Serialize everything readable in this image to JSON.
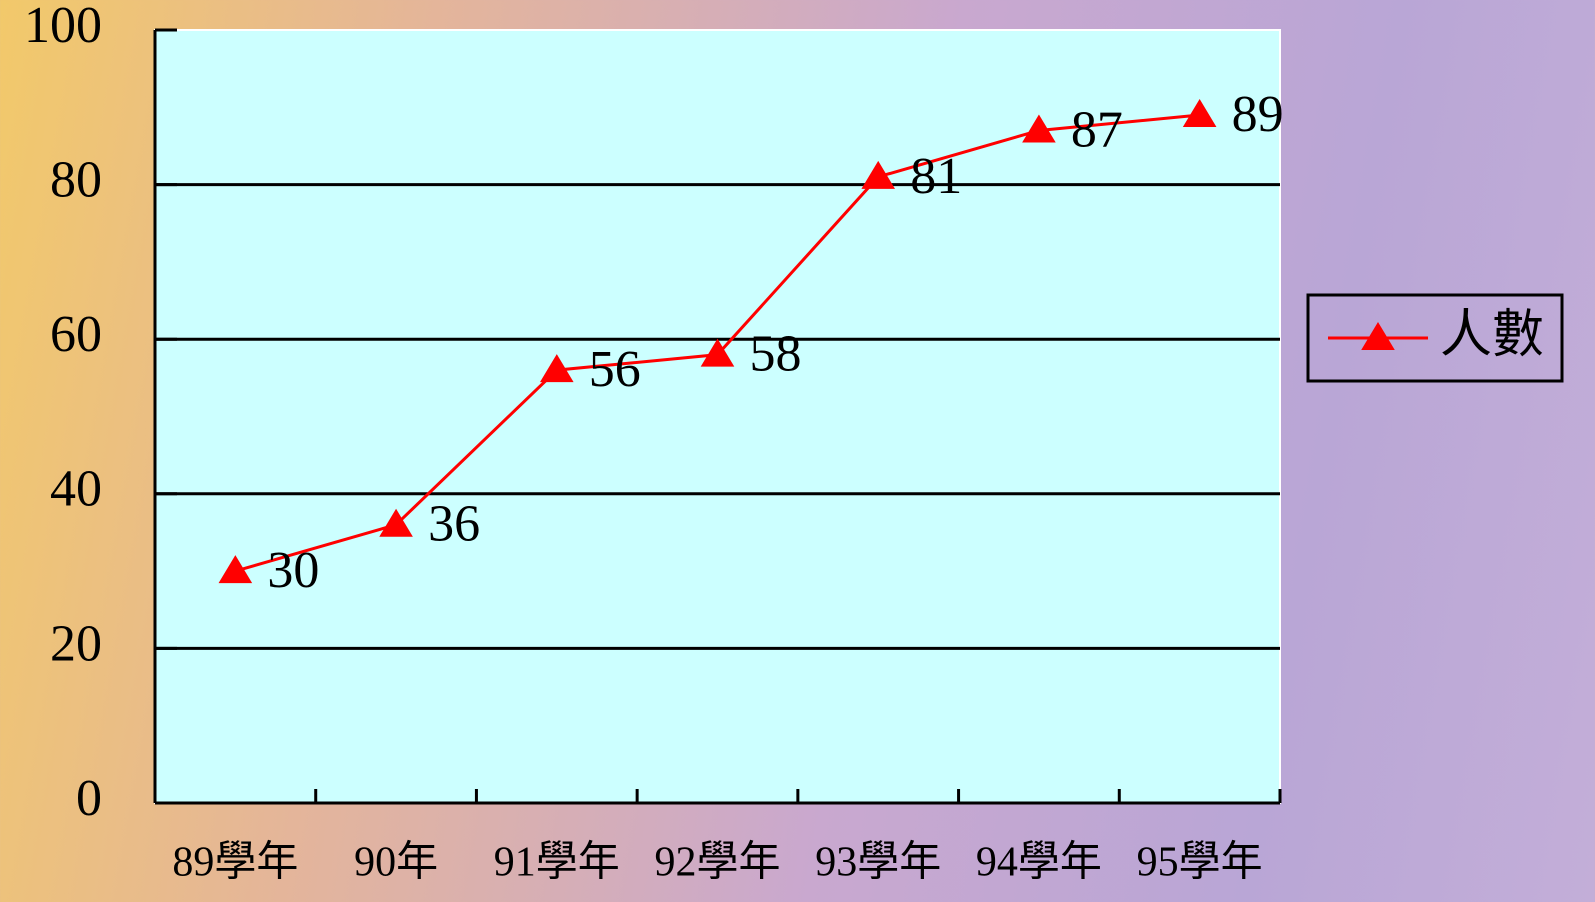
{
  "chart_data": {
    "type": "line",
    "categories": [
      "89學年",
      "90年",
      "91學年",
      "92學年",
      "93學年",
      "94學年",
      "95學年"
    ],
    "series": [
      {
        "name": "人數",
        "color": "#ff0000",
        "values": [
          30,
          36,
          56,
          58,
          81,
          87,
          89
        ]
      }
    ],
    "ylim": [
      0,
      100
    ],
    "yticks": [
      0,
      20,
      40,
      60,
      80,
      100
    ],
    "grid": true,
    "legend": "right"
  }
}
